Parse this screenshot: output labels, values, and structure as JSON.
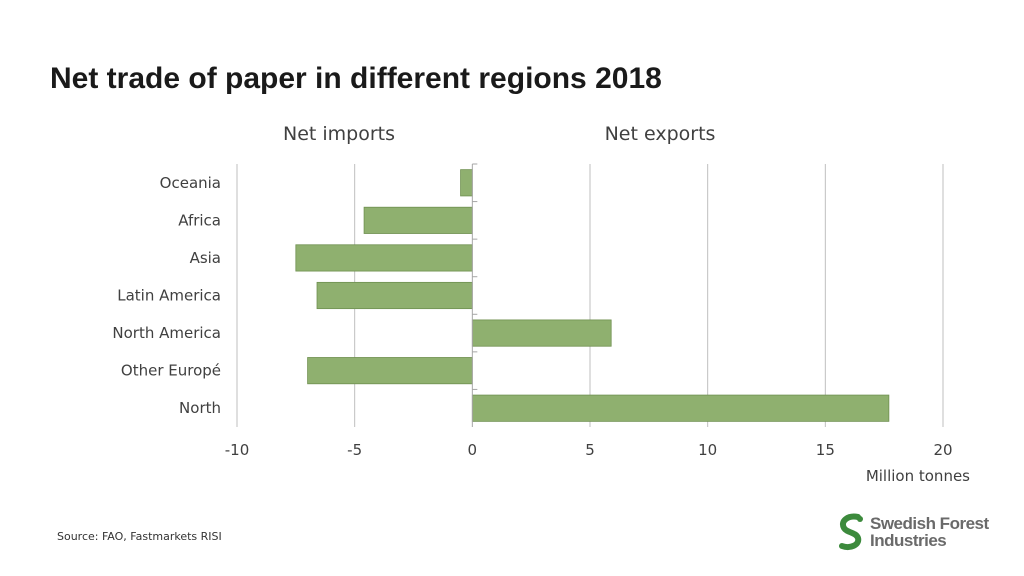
{
  "header": {
    "title": "Net trade of paper in different regions 2018"
  },
  "footer": {
    "source": "Source: FAO, Fastmarkets RISI"
  },
  "logo": {
    "line1": "Swedish Forest",
    "line2": "Industries",
    "color": "#3c8a3c"
  },
  "chart_data": {
    "type": "bar",
    "orientation": "horizontal",
    "title": "",
    "header_left": "Net imports",
    "header_right": "Net exports",
    "xlabel": "Million tonnes",
    "ylabel": "",
    "categories": [
      "Oceania",
      "Africa",
      "Asia",
      "Latin America",
      "North America",
      "Other Europé",
      "North"
    ],
    "values": [
      -0.5,
      -4.6,
      -7.5,
      -6.6,
      5.9,
      -7.0,
      17.7
    ],
    "xlim": [
      -10,
      20
    ],
    "xticks": [
      "-10",
      "-5",
      "0",
      "5",
      "10",
      "15",
      "20"
    ],
    "grid": true,
    "bar_color": "#8fb06f",
    "bar_stroke": "#6f9050"
  }
}
